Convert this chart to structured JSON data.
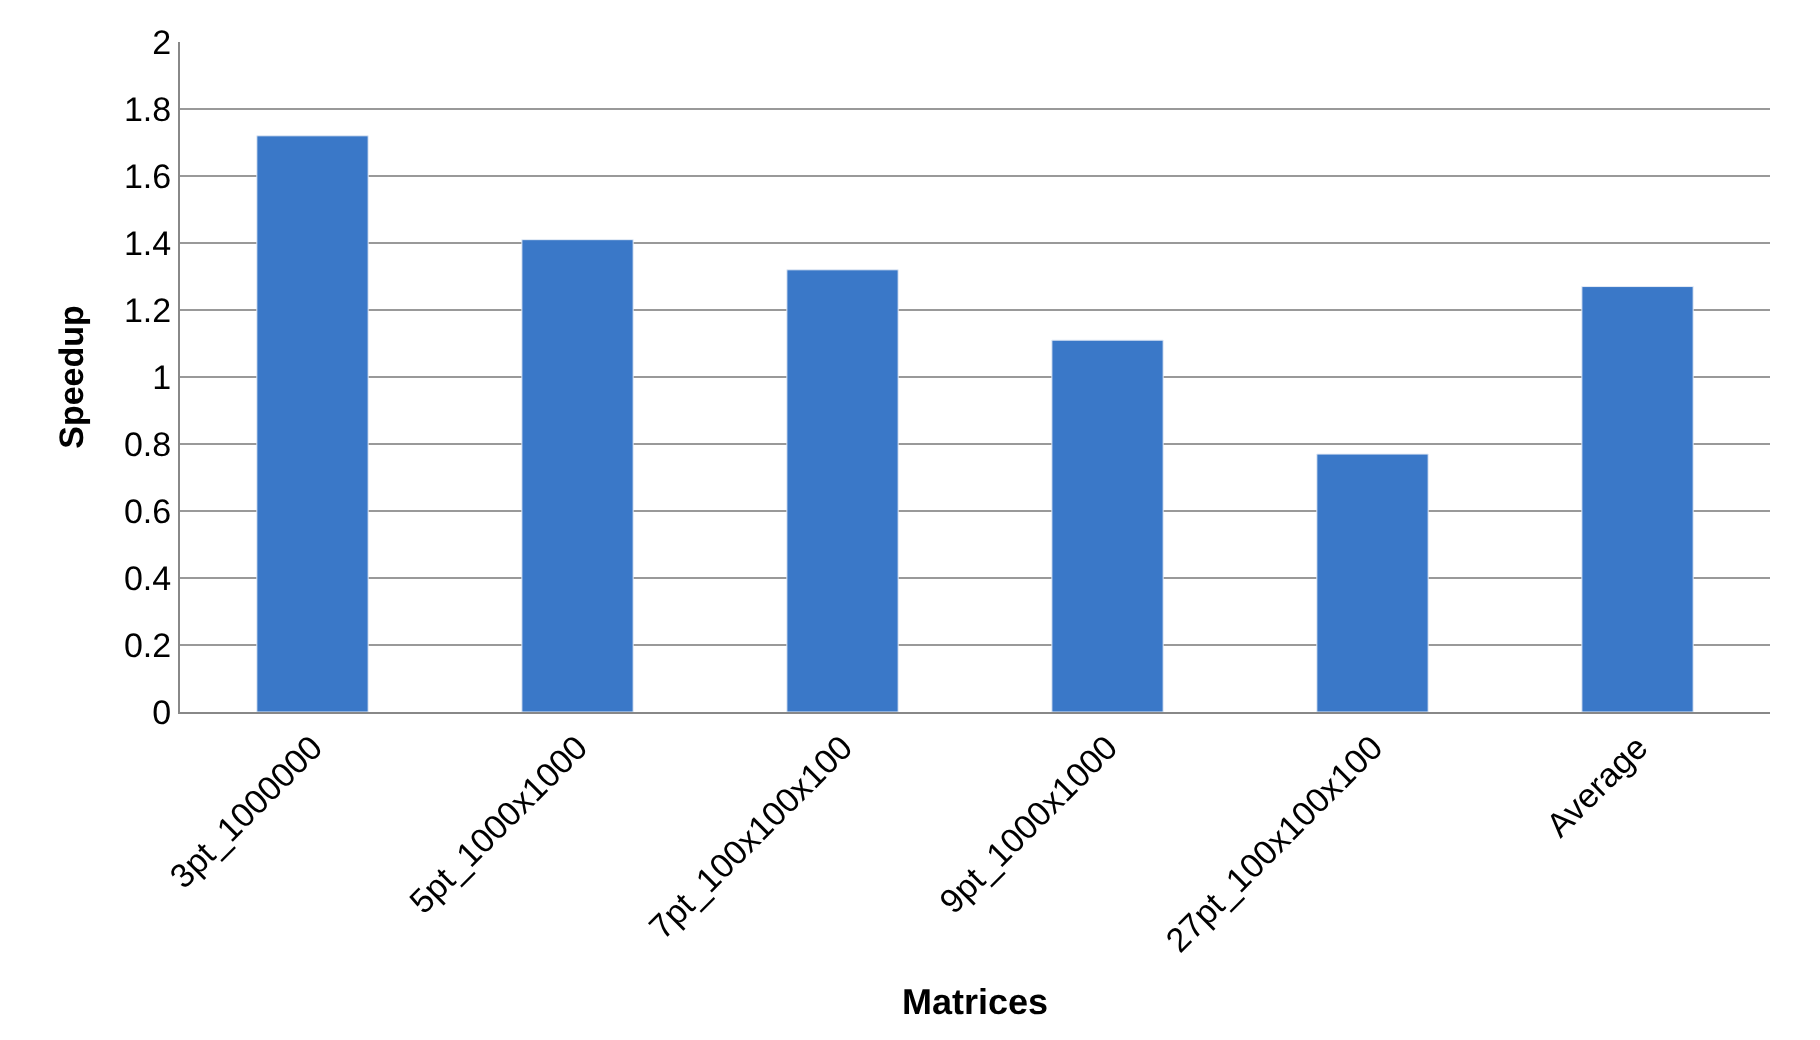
{
  "chart_data": {
    "type": "bar",
    "xlabel": "Matrices",
    "ylabel": "Speedup",
    "categories": [
      "3pt_1000000",
      "5pt_1000x1000",
      "7pt_100x100x100",
      "9pt_1000x1000",
      "27pt_100x100x100",
      "Average"
    ],
    "values": [
      1.72,
      1.41,
      1.32,
      1.11,
      0.77,
      1.27
    ],
    "color": "#3a78c8",
    "ylim": [
      0,
      2
    ],
    "yticks": [
      0,
      0.2,
      0.4,
      0.6,
      0.8,
      1,
      1.2,
      1.4,
      1.6,
      1.8,
      2
    ],
    "grid": "y",
    "legend": false
  }
}
